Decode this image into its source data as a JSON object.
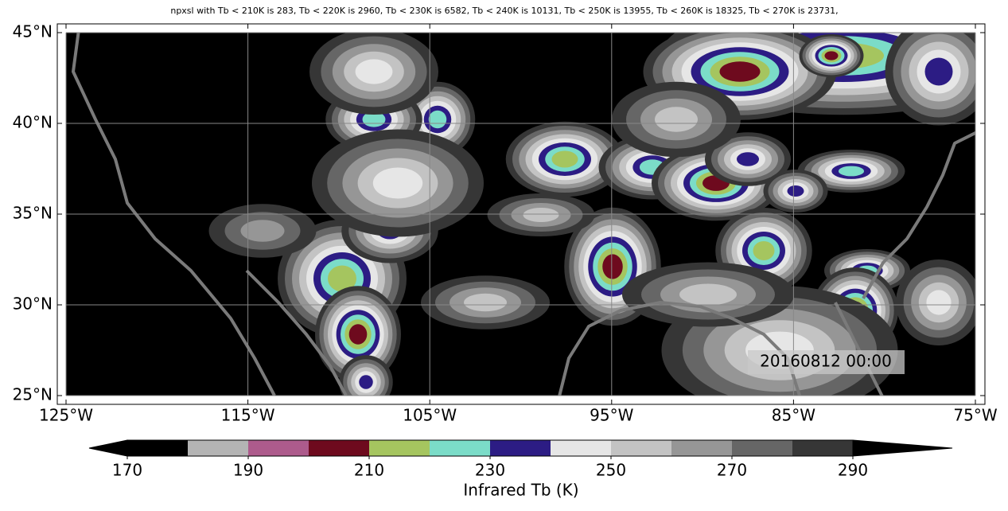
{
  "title": "npxsl with Tb < 210K is 283,  Tb < 220K is 2960,  Tb < 230K is 6582,  Tb < 240K is 10131,  Tb < 250K is 13955,  Tb < 260K is 18325,  Tb < 270K is 23731,",
  "map": {
    "xlim": [
      -125,
      -75
    ],
    "ylim": [
      25,
      45
    ],
    "xticks": [
      {
        "value": -125,
        "label": "125°W"
      },
      {
        "value": -115,
        "label": "115°W"
      },
      {
        "value": -105,
        "label": "105°W"
      },
      {
        "value": -95,
        "label": "95°W"
      },
      {
        "value": -85,
        "label": "85°W"
      },
      {
        "value": -75,
        "label": "75°W"
      }
    ],
    "yticks": [
      {
        "value": 25,
        "label": "25°N"
      },
      {
        "value": 30,
        "label": "30°N"
      },
      {
        "value": 35,
        "label": "35°N"
      },
      {
        "value": 40,
        "label": "40°N"
      },
      {
        "value": 45,
        "label": "45°N"
      }
    ],
    "grid": true,
    "timestamp": "20160812 00:00"
  },
  "colorbar": {
    "levels": [
      170,
      180,
      190,
      200,
      210,
      220,
      230,
      240,
      250,
      260,
      270,
      280,
      290
    ],
    "colors": [
      "#000000",
      "#b4b4b4",
      "#ad5b8c",
      "#6e0a1e",
      "#a5c55f",
      "#7bdcc8",
      "#2c1c84",
      "#e6e6e6",
      "#c3c3c3",
      "#969696",
      "#666666",
      "#363636"
    ],
    "extend_colors": [
      "#000000",
      "#000000"
    ],
    "ticks": [
      170,
      190,
      210,
      230,
      250,
      270,
      290
    ],
    "label": "Infrared Tb (K)"
  }
}
